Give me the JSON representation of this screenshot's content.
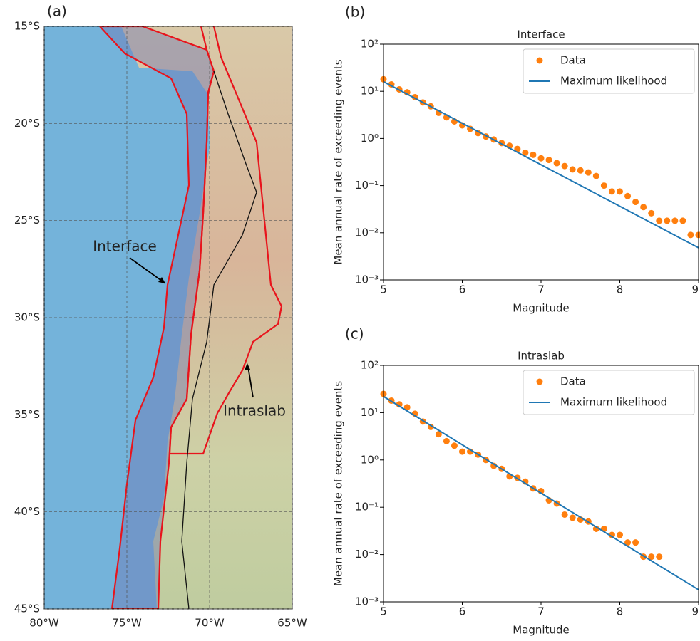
{
  "chart_data": [
    {
      "type": "map",
      "panel_label": "(a)",
      "xlim": [
        -80,
        -65
      ],
      "xticks": [
        {
          "value": -80,
          "label": "80°W"
        },
        {
          "value": -75,
          "label": "75°W"
        },
        {
          "value": -70,
          "label": "70°W"
        },
        {
          "value": -65,
          "label": "65°W"
        }
      ],
      "ylim": [
        -45,
        -15
      ],
      "yticks": [
        {
          "value": -15,
          "label": "15°S"
        },
        {
          "value": -20,
          "label": "20°S"
        },
        {
          "value": -25,
          "label": "25°S"
        },
        {
          "value": -30,
          "label": "30°S"
        },
        {
          "value": -35,
          "label": "35°S"
        },
        {
          "value": -40,
          "label": "40°S"
        },
        {
          "value": -45,
          "label": "45°S"
        }
      ],
      "grid": true,
      "annotations": [
        "Interface",
        "Intraslab"
      ]
    },
    {
      "type": "scatter",
      "panel_label": "(b)",
      "title": "Interface",
      "xlabel": "Magnitude",
      "ylabel": "Mean annual rate of exceeding events",
      "xlim": [
        5,
        9
      ],
      "xticks": [
        5,
        6,
        7,
        8,
        9
      ],
      "ylim": [
        0.001,
        100
      ],
      "log_y": true,
      "yticks": [
        {
          "value": 0.001,
          "label": "10⁻³"
        },
        {
          "value": 0.01,
          "label": "10⁻²"
        },
        {
          "value": 0.1,
          "label": "10⁻¹"
        },
        {
          "value": 1,
          "label": "10⁰"
        },
        {
          "value": 10,
          "label": "10¹"
        },
        {
          "value": 100,
          "label": "10²"
        }
      ],
      "legend": "upper right",
      "series": [
        {
          "name": "Data",
          "color": "#ff7f0e",
          "style": "markers",
          "x": [
            5.0,
            5.1,
            5.2,
            5.3,
            5.4,
            5.5,
            5.6,
            5.7,
            5.8,
            5.9,
            6.0,
            6.1,
            6.2,
            6.3,
            6.4,
            6.5,
            6.6,
            6.7,
            6.8,
            6.9,
            7.0,
            7.1,
            7.2,
            7.3,
            7.4,
            7.5,
            7.6,
            7.7,
            7.8,
            7.9,
            8.0,
            8.1,
            8.2,
            8.3,
            8.4,
            8.5,
            8.6,
            8.7,
            8.8,
            8.9,
            9.0
          ],
          "values": [
            18,
            14,
            11,
            9.5,
            7.5,
            5.8,
            4.8,
            3.5,
            2.8,
            2.3,
            1.9,
            1.6,
            1.3,
            1.1,
            0.95,
            0.8,
            0.7,
            0.6,
            0.5,
            0.45,
            0.38,
            0.35,
            0.3,
            0.26,
            0.22,
            0.21,
            0.19,
            0.16,
            0.1,
            0.075,
            0.075,
            0.06,
            0.045,
            0.035,
            0.026,
            0.018,
            0.018,
            0.018,
            0.018,
            0.009,
            0.009
          ]
        },
        {
          "name": "Maximum likelihood",
          "color": "#1f77b4",
          "style": "line",
          "x": [
            5,
            9
          ],
          "values": [
            16,
            0.0048
          ]
        }
      ]
    },
    {
      "type": "scatter",
      "panel_label": "(c)",
      "title": "Intraslab",
      "xlabel": "Magnitude",
      "ylabel": "Mean annual rate of exceeding events",
      "xlim": [
        5,
        9
      ],
      "xticks": [
        5,
        6,
        7,
        8,
        9
      ],
      "ylim": [
        0.001,
        100
      ],
      "log_y": true,
      "yticks": [
        {
          "value": 0.001,
          "label": "10⁻³"
        },
        {
          "value": 0.01,
          "label": "10⁻²"
        },
        {
          "value": 0.1,
          "label": "10⁻¹"
        },
        {
          "value": 1,
          "label": "10⁰"
        },
        {
          "value": 10,
          "label": "10¹"
        },
        {
          "value": 100,
          "label": "10²"
        }
      ],
      "legend": "upper right",
      "series": [
        {
          "name": "Data",
          "color": "#ff7f0e",
          "style": "markers",
          "x": [
            5.0,
            5.1,
            5.2,
            5.3,
            5.4,
            5.5,
            5.6,
            5.7,
            5.8,
            5.9,
            6.0,
            6.1,
            6.2,
            6.3,
            6.4,
            6.5,
            6.6,
            6.7,
            6.8,
            6.9,
            7.0,
            7.1,
            7.2,
            7.3,
            7.4,
            7.5,
            7.6,
            7.7,
            7.8,
            7.9,
            8.0,
            8.1,
            8.2,
            8.3,
            8.4,
            8.5
          ],
          "values": [
            25,
            18,
            15,
            13,
            9.5,
            6.5,
            5,
            3.5,
            2.5,
            2,
            1.5,
            1.5,
            1.3,
            1.0,
            0.75,
            0.65,
            0.45,
            0.42,
            0.35,
            0.25,
            0.22,
            0.14,
            0.12,
            0.07,
            0.06,
            0.055,
            0.05,
            0.035,
            0.035,
            0.026,
            0.026,
            0.018,
            0.018,
            0.009,
            0.009,
            0.009
          ]
        },
        {
          "name": "Maximum likelihood",
          "color": "#1f77b4",
          "style": "line",
          "x": [
            5,
            9
          ],
          "values": [
            22,
            0.0018
          ]
        }
      ]
    }
  ]
}
